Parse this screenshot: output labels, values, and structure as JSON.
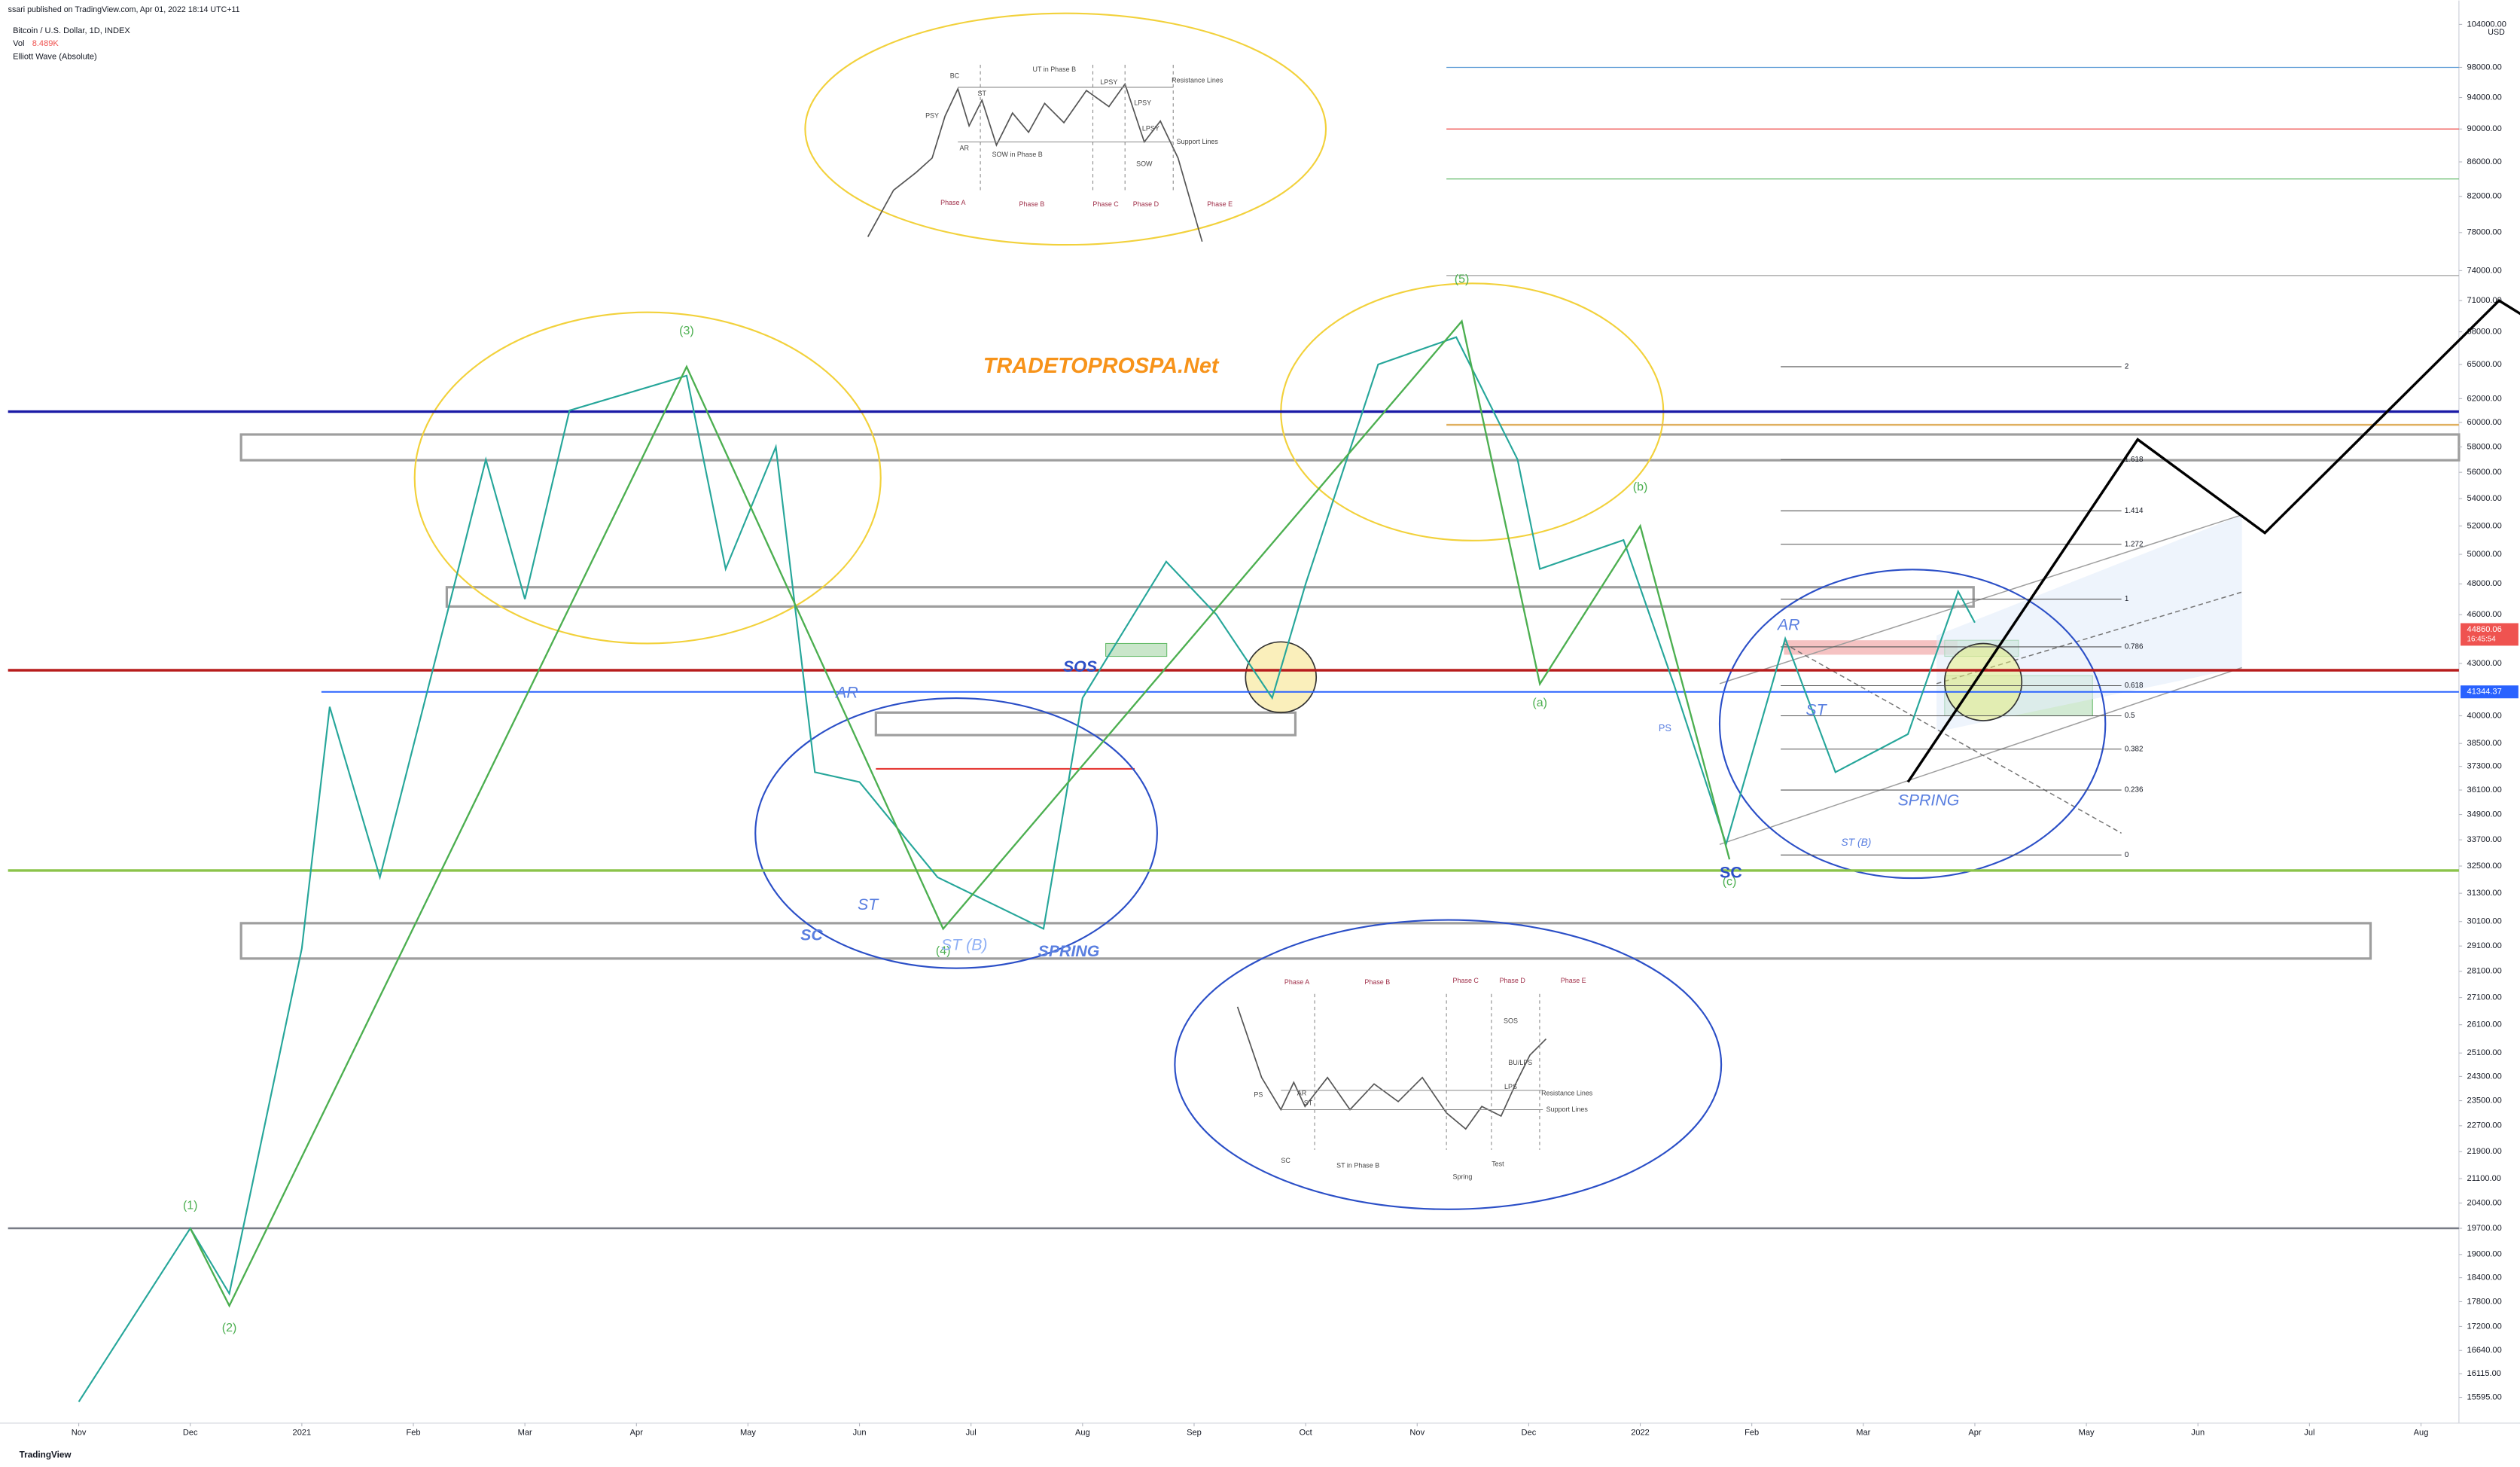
{
  "header": {
    "published": "ssari published on TradingView.com, Apr 01, 2022 18:14 UTC+11",
    "symbol": "Bitcoin / U.S. Dollar, 1D, INDEX",
    "vol_label": "Vol",
    "vol_value": "8.489K",
    "indicator": "Elliott Wave (Absolute)"
  },
  "footer": "TradingView",
  "chart_data": {
    "type": "line",
    "currency": "USD",
    "log_scale": true,
    "categories": [
      "Nov",
      "Dec",
      "2021",
      "Feb",
      "Mar",
      "Apr",
      "May",
      "Jun",
      "Jul",
      "Aug",
      "Sep",
      "Oct",
      "Nov",
      "Dec",
      "2022",
      "Feb",
      "Mar",
      "Apr",
      "May",
      "Jun",
      "Jul",
      "Aug"
    ],
    "x": [
      0,
      1.0,
      1.35,
      2.0,
      2.25,
      2.7,
      3.3,
      3.65,
      4.0,
      4.4,
      5.45,
      5.8,
      6.25,
      6.6,
      7.0,
      7.7,
      8.65,
      9.0,
      9.75,
      10.2,
      10.7,
      11.0,
      11.65,
      12.35,
      12.9,
      13.1,
      13.85,
      14.3,
      14.77,
      15.3,
      15.75,
      16.4,
      16.85,
      17.0
    ],
    "series": [
      {
        "color": "#26a69a",
        "values": [
          15500,
          19700,
          18000,
          29000,
          40500,
          32000,
          46000,
          57000,
          47000,
          61000,
          64000,
          49000,
          58000,
          37000,
          36500,
          32000,
          29800,
          41000,
          49500,
          46000,
          41000,
          48000,
          65000,
          67500,
          57000,
          49000,
          51000,
          41800,
          33500,
          44500,
          37000,
          39000,
          47500,
          45500
        ]
      }
    ],
    "ylim": [
      15050,
      105600
    ],
    "yticks": [
      {
        "value": 104000,
        "label": "104000.00"
      },
      {
        "value": 98000,
        "label": "98000.00"
      },
      {
        "value": 94000,
        "label": "94000.00"
      },
      {
        "value": 90000,
        "label": "90000.00"
      },
      {
        "value": 86000,
        "label": "86000.00"
      },
      {
        "value": 82000,
        "label": "82000.00"
      },
      {
        "value": 78000,
        "label": "78000.00"
      },
      {
        "value": 74000,
        "label": "74000.00"
      },
      {
        "value": 71000,
        "label": "71000.00"
      },
      {
        "value": 68000,
        "label": "68000.00"
      },
      {
        "value": 65000,
        "label": "65000.00"
      },
      {
        "value": 62000,
        "label": "62000.00"
      },
      {
        "value": 60000,
        "label": "60000.00"
      },
      {
        "value": 58000,
        "label": "58000.00"
      },
      {
        "value": 56000,
        "label": "56000.00"
      },
      {
        "value": 54000,
        "label": "54000.00"
      },
      {
        "value": 52000,
        "label": "52000.00"
      },
      {
        "value": 50000,
        "label": "50000.00"
      },
      {
        "value": 48000,
        "label": "48000.00"
      },
      {
        "value": 46000,
        "label": "46000.00"
      },
      {
        "value": 43000,
        "label": "43000.00"
      },
      {
        "value": 40000,
        "label": "40000.00"
      },
      {
        "value": 38500,
        "label": "38500.00"
      },
      {
        "value": 37300,
        "label": "37300.00"
      },
      {
        "value": 36100,
        "label": "36100.00"
      },
      {
        "value": 34900,
        "label": "34900.00"
      },
      {
        "value": 33700,
        "label": "33700.00"
      },
      {
        "value": 32500,
        "label": "32500.00"
      },
      {
        "value": 31300,
        "label": "31300.00"
      },
      {
        "value": 30100,
        "label": "30100.00"
      },
      {
        "value": 29100,
        "label": "29100.00"
      },
      {
        "value": 28100,
        "label": "28100.00"
      },
      {
        "value": 27100,
        "label": "27100.00"
      },
      {
        "value": 26100,
        "label": "26100.00"
      },
      {
        "value": 25100,
        "label": "25100.00"
      },
      {
        "value": 24300,
        "label": "24300.00"
      },
      {
        "value": 23500,
        "label": "23500.00"
      },
      {
        "value": 22700,
        "label": "22700.00"
      },
      {
        "value": 21900,
        "label": "21900.00"
      },
      {
        "value": 21100,
        "label": "21100.00"
      },
      {
        "value": 20400,
        "label": "20400.00"
      },
      {
        "value": 19700,
        "label": "19700.00"
      },
      {
        "value": 19000,
        "label": "19000.00"
      },
      {
        "value": 18400,
        "label": "18400.00"
      },
      {
        "value": 17800,
        "label": "17800.00"
      },
      {
        "value": 17200,
        "label": "17200.00"
      },
      {
        "value": 16640,
        "label": "16640.00"
      },
      {
        "value": 16115,
        "label": "16115.00"
      },
      {
        "value": 15595,
        "label": "15595.00"
      }
    ],
    "last_price": 44860.06,
    "countdown": "16:45:54",
    "marked_price": 41344.37,
    "levels": [
      {
        "value": 60900,
        "color": "#1a1aa6"
      },
      {
        "value": 42600,
        "color": "#b71c1c"
      },
      {
        "value": 32300,
        "color": "#8bc34a"
      },
      {
        "value": 19700,
        "color": "#787b86"
      },
      {
        "value": 98000,
        "color": "#5b9bd5"
      },
      {
        "value": 90000,
        "color": "#ef5350"
      },
      {
        "value": 84000,
        "color": "#66bb6a"
      },
      {
        "value": 73500,
        "color": "#9e9e9e"
      },
      {
        "value": 59800,
        "color": "#e0b060"
      }
    ],
    "fib": {
      "labels": [
        "2",
        "1.618",
        "1.414",
        "1.272",
        "1",
        "0.786",
        "0.618",
        "0.5",
        "0.382",
        "0.236",
        "0"
      ],
      "values": [
        64800,
        57000,
        53100,
        50700,
        47000,
        44000,
        41700,
        40000,
        38200,
        36100,
        33000
      ]
    },
    "waves": {
      "color": "#4caf50",
      "labels": [
        "(1)",
        "(2)",
        "(3)",
        "(4)",
        "(5)",
        "(a)",
        "(b)",
        "(c)"
      ],
      "x": [
        1.0,
        1.35,
        5.45,
        7.75,
        12.4,
        13.1,
        14.0,
        14.8
      ],
      "values": [
        19700,
        17700,
        64800,
        29800,
        69000,
        41800,
        52000,
        32800
      ]
    },
    "projection": {
      "color": "#000000",
      "x": [
        16.4,
        18.46,
        19.6,
        21.7,
        22.0
      ],
      "values": [
        36500,
        58600,
        51500,
        71000,
        69000
      ]
    },
    "annotations": [
      "TRADETOPROSPA.Net",
      "SOS",
      "AR",
      "ST",
      "SC",
      "ST (B)",
      "SPRING",
      "AR",
      "ST",
      "PS",
      "SC",
      "ST (B)",
      "SPRING"
    ],
    "schematics": {
      "distribution": [
        "PSY",
        "BC",
        "ST",
        "AR",
        "SOW in Phase B",
        "UT in Phase B",
        "LPSY",
        "LPSY",
        "LPSY",
        "SOW",
        "Resistance Lines",
        "Support Lines",
        "Phase A",
        "Phase B",
        "Phase C",
        "Phase D",
        "Phase E"
      ],
      "accumulation": [
        "Phase A",
        "Phase B",
        "Phase C",
        "Phase D",
        "Phase E",
        "PS",
        "AR",
        "SC",
        "ST",
        "ST in Phase B",
        "Spring",
        "Test",
        "SOS",
        "BU/LPS",
        "LPS",
        "Resistance Lines",
        "Support Lines"
      ]
    }
  }
}
